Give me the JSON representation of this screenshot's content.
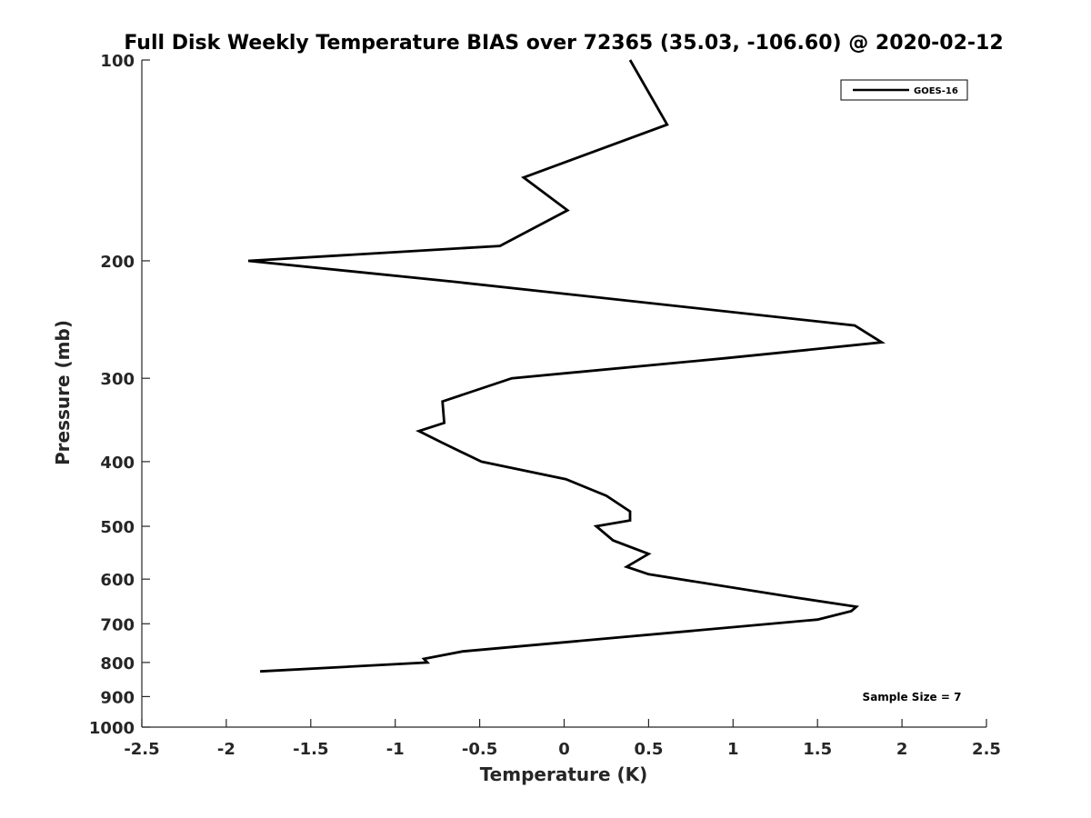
{
  "chart_data": {
    "type": "line",
    "title": "Full Disk Weekly Temperature BIAS over 72365 (35.03, -106.60) @ 2020-02-12",
    "xlabel": "Temperature (K)",
    "ylabel": "Pressure (mb)",
    "xlim": [
      -2.5,
      2.5
    ],
    "ylim": [
      100,
      1000
    ],
    "y_scale": "log",
    "y_reversed": true,
    "x_ticks": [
      -2.5,
      -2,
      -1.5,
      -1,
      -0.5,
      0,
      0.5,
      1,
      1.5,
      2,
      2.5
    ],
    "x_tick_labels": [
      "-2.5",
      "-2",
      "-1.5",
      "-1",
      "-0.5",
      "0",
      "0.5",
      "1",
      "1.5",
      "2",
      "2.5"
    ],
    "y_ticks": [
      100,
      200,
      300,
      400,
      500,
      600,
      700,
      800,
      900,
      1000
    ],
    "y_tick_labels": [
      "100",
      "200",
      "300",
      "400",
      "500",
      "600",
      "700",
      "800",
      "900",
      "1000"
    ],
    "grid": false,
    "legend_position": "top-right",
    "series": [
      {
        "name": "GOES-16",
        "color": "#000000",
        "points": [
          {
            "x": 0.39,
            "p": 100
          },
          {
            "x": 0.61,
            "p": 125
          },
          {
            "x": -0.24,
            "p": 150
          },
          {
            "x": 0.02,
            "p": 168
          },
          {
            "x": -0.38,
            "p": 190
          },
          {
            "x": -1.87,
            "p": 200
          },
          {
            "x": -0.65,
            "p": 215
          },
          {
            "x": 1.72,
            "p": 250
          },
          {
            "x": 1.88,
            "p": 265
          },
          {
            "x": 0.95,
            "p": 280
          },
          {
            "x": -0.31,
            "p": 300
          },
          {
            "x": -0.72,
            "p": 325
          },
          {
            "x": -0.71,
            "p": 350
          },
          {
            "x": -0.86,
            "p": 360
          },
          {
            "x": -0.72,
            "p": 375
          },
          {
            "x": -0.49,
            "p": 400
          },
          {
            "x": 0.01,
            "p": 425
          },
          {
            "x": 0.25,
            "p": 450
          },
          {
            "x": 0.39,
            "p": 475
          },
          {
            "x": 0.39,
            "p": 490
          },
          {
            "x": 0.19,
            "p": 500
          },
          {
            "x": 0.29,
            "p": 525
          },
          {
            "x": 0.5,
            "p": 550
          },
          {
            "x": 0.37,
            "p": 575
          },
          {
            "x": 0.5,
            "p": 590
          },
          {
            "x": 1.38,
            "p": 640
          },
          {
            "x": 1.73,
            "p": 660
          },
          {
            "x": 1.7,
            "p": 670
          },
          {
            "x": 1.5,
            "p": 690
          },
          {
            "x": -0.6,
            "p": 770
          },
          {
            "x": -0.83,
            "p": 790
          },
          {
            "x": -0.81,
            "p": 800
          },
          {
            "x": -1.8,
            "p": 825
          }
        ]
      }
    ],
    "annotation": "Sample Size = 7"
  }
}
